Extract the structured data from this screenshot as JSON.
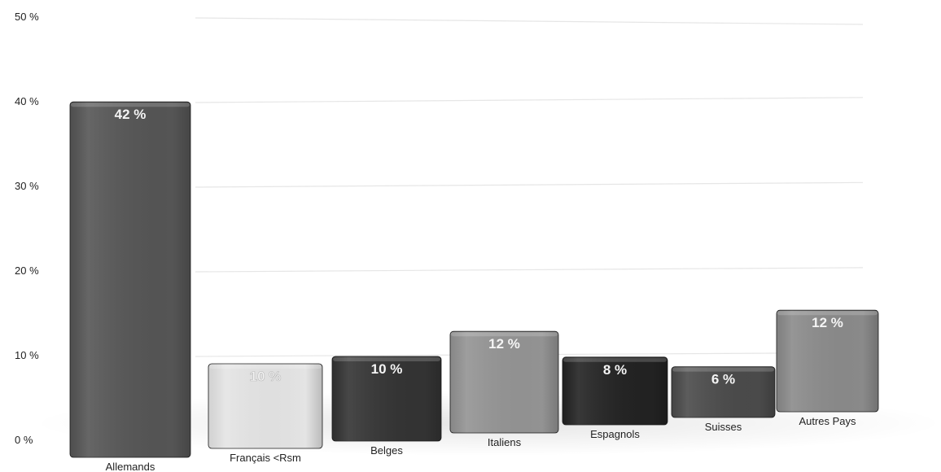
{
  "chart_data": {
    "type": "bar",
    "categories": [
      "Allemands",
      "Français <Rsm",
      "Belges",
      "Italiens",
      "Espagnols",
      "Suisses",
      "Autres Pays"
    ],
    "values": [
      42,
      10,
      10,
      12,
      8,
      6,
      12
    ],
    "data_labels": [
      "42 %",
      "10 %",
      "10 %",
      "12 %",
      "8 %",
      "6 %",
      "12 %"
    ],
    "bar_colors": [
      "#555555",
      "#e4e4e4",
      "#333333",
      "#939393",
      "#222222",
      "#4a4a4a",
      "#8a8a8a"
    ],
    "y_ticks": [
      {
        "value": 0,
        "label": "0 %"
      },
      {
        "value": 10,
        "label": "10 %"
      },
      {
        "value": 20,
        "label": "20 %"
      },
      {
        "value": 30,
        "label": "30 %"
      },
      {
        "value": 40,
        "label": "40 %"
      },
      {
        "value": 50,
        "label": "50 %"
      }
    ],
    "ylim": [
      0,
      50
    ],
    "grid": true,
    "legend": "none"
  }
}
